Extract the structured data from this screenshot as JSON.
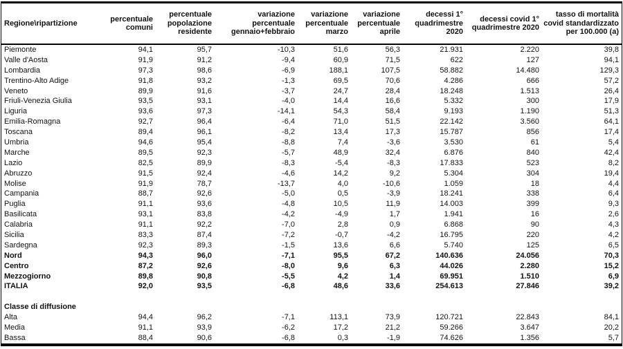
{
  "page": {
    "background": "#ffffff",
    "text_color": "#111111",
    "border_color": "#000000"
  },
  "table": {
    "columns": [
      {
        "label": "Regione\\ripartizione"
      },
      {
        "label": "percentuale comuni"
      },
      {
        "label": "percentuale popolazione residente"
      },
      {
        "label": "variazione percentuale gennaio+febbraio"
      },
      {
        "label": "variazione percentuale marzo"
      },
      {
        "label": "variazione percentuale aprile"
      },
      {
        "label": "decessi 1° quadrimestre 2020"
      },
      {
        "label": "decessi covid 1° quadrimestre 2020"
      },
      {
        "label": "tasso di mortalità covid standardizzato per 100.000 (a)"
      }
    ],
    "rows": [
      {
        "name": "Piemonte",
        "values": [
          "94,1",
          "95,7",
          "-10,3",
          "51,6",
          "56,3",
          "21.931",
          "2.220",
          "39,8"
        ],
        "bold": false
      },
      {
        "name": "Valle d'Aosta",
        "values": [
          "91,9",
          "91,2",
          "-9,4",
          "60,9",
          "71,5",
          "622",
          "127",
          "94,1"
        ],
        "bold": false
      },
      {
        "name": "Lombardia",
        "values": [
          "97,3",
          "98,6",
          "-6,9",
          "188,1",
          "107,5",
          "58.882",
          "14.480",
          "129,3"
        ],
        "bold": false
      },
      {
        "name": "Trentino-Alto Adige",
        "values": [
          "91,8",
          "93,2",
          "-1,3",
          "69,5",
          "70,6",
          "4.286",
          "666",
          "57,2"
        ],
        "bold": false
      },
      {
        "name": "Veneto",
        "values": [
          "89,9",
          "91,6",
          "-3,7",
          "24,7",
          "28,4",
          "18.248",
          "1.513",
          "26,4"
        ],
        "bold": false
      },
      {
        "name": "Friuli-Venezia Giulia",
        "values": [
          "93,5",
          "93,1",
          "-4,0",
          "14,4",
          "16,6",
          "5.332",
          "300",
          "17,9"
        ],
        "bold": false
      },
      {
        "name": "Liguria",
        "values": [
          "93,6",
          "97,3",
          "-14,1",
          "54,3",
          "58,4",
          "9.193",
          "1.190",
          "51,3"
        ],
        "bold": false
      },
      {
        "name": "Emilia-Romagna",
        "values": [
          "92,7",
          "96,4",
          "-6,4",
          "71,0",
          "51,5",
          "22.142",
          "3.560",
          "64,1"
        ],
        "bold": false
      },
      {
        "name": "Toscana",
        "values": [
          "89,4",
          "96,1",
          "-8,2",
          "13,4",
          "17,3",
          "15.787",
          "856",
          "17,4"
        ],
        "bold": false
      },
      {
        "name": "Umbria",
        "values": [
          "94,6",
          "95,4",
          "-8,8",
          "7,4",
          "-3,6",
          "3.530",
          "61",
          "5,4"
        ],
        "bold": false
      },
      {
        "name": "Marche",
        "values": [
          "89,5",
          "92,3",
          "-5,7",
          "48,9",
          "32,4",
          "6.876",
          "840",
          "42,4"
        ],
        "bold": false
      },
      {
        "name": "Lazio",
        "values": [
          "82,5",
          "89,9",
          "-8,3",
          "-5,4",
          "-8,3",
          "17.833",
          "523",
          "8,2"
        ],
        "bold": false
      },
      {
        "name": "Abruzzo",
        "values": [
          "91,5",
          "92,4",
          "-4,6",
          "14,2",
          "9,2",
          "5.304",
          "304",
          "19,4"
        ],
        "bold": false
      },
      {
        "name": "Molise",
        "values": [
          "91,9",
          "78,7",
          "-13,7",
          "4,0",
          "-10,6",
          "1.059",
          "18",
          "4,4"
        ],
        "bold": false
      },
      {
        "name": "Campania",
        "values": [
          "88,7",
          "92,6",
          "-5,0",
          "0,5",
          "-3,9",
          "18.241",
          "338",
          "6,4"
        ],
        "bold": false
      },
      {
        "name": "Puglia",
        "values": [
          "91,1",
          "93,6",
          "-4,8",
          "10,5",
          "11,9",
          "14.003",
          "399",
          "9,3"
        ],
        "bold": false
      },
      {
        "name": "Basilicata",
        "values": [
          "93,1",
          "83,8",
          "-4,2",
          "-4,9",
          "1,7",
          "1.941",
          "16",
          "2,6"
        ],
        "bold": false
      },
      {
        "name": "Calabria",
        "values": [
          "91,1",
          "92,2",
          "-7,0",
          "2,8",
          "0,9",
          "6.868",
          "90",
          "4,3"
        ],
        "bold": false
      },
      {
        "name": "Sicilia",
        "values": [
          "83,3",
          "87,4",
          "-7,2",
          "-0,7",
          "-4,2",
          "16.795",
          "220",
          "4,2"
        ],
        "bold": false
      },
      {
        "name": "Sardegna",
        "values": [
          "92,3",
          "89,3",
          "-1,5",
          "13,6",
          "6,6",
          "5.740",
          "125",
          "6,5"
        ],
        "bold": false
      },
      {
        "name": "Nord",
        "values": [
          "94,3",
          "96,0",
          "-7,1",
          "95,5",
          "67,2",
          "140.636",
          "24.056",
          "70,3"
        ],
        "bold": true
      },
      {
        "name": "Centro",
        "values": [
          "87,2",
          "92,6",
          "-8,0",
          "9,6",
          "6,3",
          "44.026",
          "2.280",
          "15,2"
        ],
        "bold": true
      },
      {
        "name": "Mezzogiorno",
        "values": [
          "89,8",
          "90,8",
          "-5,5",
          "4,2",
          "1,4",
          "69.951",
          "1.510",
          "6,9"
        ],
        "bold": true
      },
      {
        "name": "ITALIA",
        "values": [
          "92,0",
          "93,5",
          "-6,8",
          "48,6",
          "33,6",
          "254.613",
          "27.846",
          "39,2"
        ],
        "bold": true
      },
      {
        "name": "",
        "values": [],
        "bold": false,
        "spacer": true
      },
      {
        "name": "Classe di diffusione",
        "values": [],
        "bold": true,
        "section": true
      },
      {
        "name": "Alta",
        "values": [
          "94,4",
          "96,2",
          "-7,1",
          "113,1",
          "73,9",
          "120.721",
          "22.843",
          "84,1"
        ],
        "bold": false
      },
      {
        "name": "Media",
        "values": [
          "91,1",
          "93,9",
          "-6,2",
          "17,2",
          "21,2",
          "59.266",
          "3.647",
          "20,2"
        ],
        "bold": false
      },
      {
        "name": "Bassa",
        "values": [
          "88,4",
          "90,6",
          "-6,8",
          "0,3",
          "-1,9",
          "74.626",
          "1.356",
          "5,7"
        ],
        "bold": false
      }
    ]
  }
}
